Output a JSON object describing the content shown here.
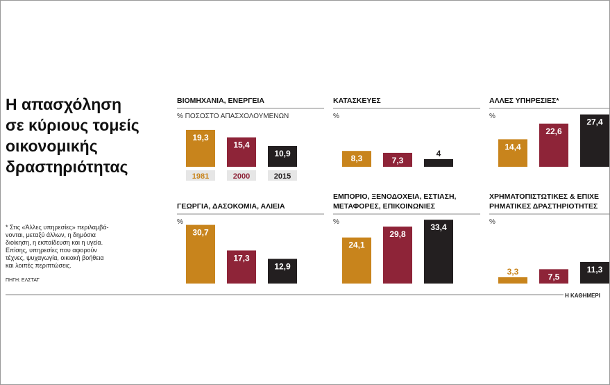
{
  "title": [
    "Η απασχόληση",
    "σε κύριους τομείς",
    "οικονομικής",
    "δραστηριότητας"
  ],
  "note": [
    "* Στις «Άλλες υπηρεσίες» περιλαμβά-",
    "νονται, μεταξύ άλλων, η δημόσια",
    "διοίκηση, η εκπαίδευση και η υγεία.",
    "Επίσης, υπηρεσίες που αφορούν",
    "τέχνες, ψυχαγωγία, οικιακή βοήθεια",
    "και λοιπές περιπτώσεις."
  ],
  "source": "ΠΗΓΗ: ΕΛΣΤΑΤ",
  "brand": "Η ΚΑΘΗΜΕΡΙ",
  "chart_data": [
    {
      "type": "bar",
      "title": [
        "ΒΙΟΜΗΧΑΝΙΑ, ΕΝΕΡΓΕΙΑ"
      ],
      "subtitle": "% ΠΟΣΟΣΤΟ ΑΠΑΣΧΟΛΟΥΜΕΝΩΝ",
      "categories": [
        "1981",
        "2000",
        "2015"
      ],
      "values": [
        19.3,
        15.4,
        10.9
      ],
      "value_labels": [
        "19,3",
        "15,4",
        "10,9"
      ],
      "colors": [
        "#c8841c",
        "#8e2438",
        "#231f20"
      ]
    },
    {
      "type": "bar",
      "title": [
        "ΚΑΤΑΣΚΕΥΕΣ"
      ],
      "subtitle": "%",
      "categories": [
        null,
        null,
        null
      ],
      "values": [
        8.3,
        7.3,
        4
      ],
      "value_labels": [
        "8,3",
        "7,3",
        "4"
      ],
      "colors": [
        "#c8841c",
        "#8e2438",
        "#231f20"
      ]
    },
    {
      "type": "bar",
      "title": [
        "ΑΛΛΕΣ ΥΠΗΡΕΣΙΕΣ*"
      ],
      "subtitle": "%",
      "categories": [
        null,
        null,
        null
      ],
      "values": [
        14.4,
        22.6,
        27.4
      ],
      "value_labels": [
        "14,4",
        "22,6",
        "27,4"
      ],
      "colors": [
        "#c8841c",
        "#8e2438",
        "#231f20"
      ]
    },
    {
      "type": "bar",
      "title": [
        "ΓΕΩΡΓΙΑ, ΔΑΣΟΚΟΜΙΑ, ΑΛΙΕΙΑ"
      ],
      "subtitle": "%",
      "categories": [
        null,
        null,
        null
      ],
      "values": [
        30.7,
        17.3,
        12.9
      ],
      "value_labels": [
        "30,7",
        "17,3",
        "12,9"
      ],
      "colors": [
        "#c8841c",
        "#8e2438",
        "#231f20"
      ]
    },
    {
      "type": "bar",
      "title": [
        "ΕΜΠΟΡΙΟ, ΞΕΝΟΔΟΧΕΙΑ, ΕΣΤΙΑΣΗ,",
        "ΜΕΤΑΦΟΡΕΣ, ΕΠΙΚΟΙΝΩΝΙΕΣ"
      ],
      "subtitle": "%",
      "categories": [
        null,
        null,
        null
      ],
      "values": [
        24.1,
        29.8,
        33.4
      ],
      "value_labels": [
        "24,1",
        "29,8",
        "33,4"
      ],
      "colors": [
        "#c8841c",
        "#8e2438",
        "#231f20"
      ]
    },
    {
      "type": "bar",
      "title": [
        "ΧΡΗΜΑΤΟΠΙΣΤΩΤΙΚΕΣ & ΕΠΙΧΕ",
        "ΡΗΜΑΤΙΚΕΣ ΔΡΑΣΤΗΡΙΟΤΗΤΕΣ"
      ],
      "subtitle": "%",
      "categories": [
        null,
        null,
        null
      ],
      "values": [
        3.3,
        7.5,
        11.3
      ],
      "value_labels": [
        "3,3",
        "7,5",
        "11,3"
      ],
      "colors": [
        "#c8841c",
        "#8e2438",
        "#231f20"
      ]
    }
  ]
}
